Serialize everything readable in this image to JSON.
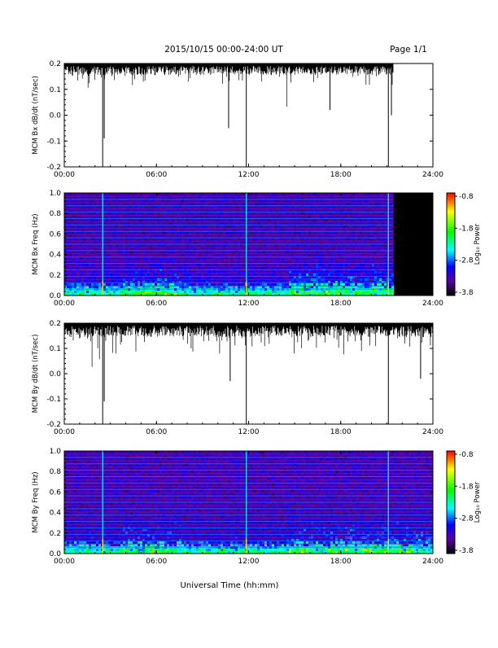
{
  "header": {
    "date_title": "2015/10/15  00:00-24:00 UT",
    "page_label": "Page 1/1"
  },
  "xaxis": {
    "label": "Universal Time (hh:mm)",
    "ticks": [
      "00:00",
      "06:00",
      "12:00",
      "18:00",
      "24:00"
    ]
  },
  "colorbar": {
    "label": "Log₁₀ Power",
    "ticks": [
      "-0.8",
      "-1.8",
      "-2.8",
      "-3.8"
    ],
    "colors": [
      "#ff0000",
      "#ffff00",
      "#00ff00",
      "#00ffff",
      "#0000ff",
      "#5500aa",
      "#000000"
    ]
  },
  "chart_data": [
    {
      "type": "line",
      "ylabel": "MCM Bx dB/dt (nT/sec)",
      "xlim": [
        0,
        24
      ],
      "ylim": [
        -0.2,
        0.2
      ],
      "yticks": [
        "0.2",
        "0.1",
        "0.0",
        "-0.1",
        "-0.2"
      ],
      "data_end_hour": 21.4,
      "baseline": 0.19,
      "noise_depth": 0.035,
      "spikes": [
        {
          "x": 2.5,
          "y": -0.2
        },
        {
          "x": 2.6,
          "y": -0.09
        },
        {
          "x": 11.85,
          "y": -0.2
        },
        {
          "x": 10.7,
          "y": -0.05
        },
        {
          "x": 17.3,
          "y": 0.02
        },
        {
          "x": 21.1,
          "y": -0.2
        },
        {
          "x": 21.3,
          "y": 0.0
        }
      ]
    },
    {
      "type": "heatmap",
      "ylabel": "MCM Bx Freq (Hz)",
      "xlim": [
        0,
        24
      ],
      "ylim": [
        0,
        1.0
      ],
      "yticks": [
        "1.0",
        "0.8",
        "0.6",
        "0.4",
        "0.2",
        "0.0"
      ],
      "data_end_hour": 21.4,
      "harmonic_spacing_hz": 0.0625,
      "event_lines_hours": [
        2.5,
        11.85,
        21.1
      ],
      "color_range": [
        -3.8,
        -0.8
      ]
    },
    {
      "type": "line",
      "ylabel": "MCM By dB/dt (nT/sec)",
      "xlim": [
        0,
        24
      ],
      "ylim": [
        -0.2,
        0.2
      ],
      "yticks": [
        "0.2",
        "0.1",
        "0.0",
        "-0.1",
        "-0.2"
      ],
      "data_end_hour": 24,
      "baseline": 0.19,
      "noise_depth": 0.045,
      "spikes": [
        {
          "x": 2.5,
          "y": -0.2
        },
        {
          "x": 2.6,
          "y": -0.11
        },
        {
          "x": 10.8,
          "y": -0.03
        },
        {
          "x": 11.85,
          "y": -0.2
        },
        {
          "x": 21.1,
          "y": -0.2
        },
        {
          "x": 23.2,
          "y": -0.02
        }
      ]
    },
    {
      "type": "heatmap",
      "ylabel": "MCM By Freq (Hz)",
      "xlim": [
        0,
        24
      ],
      "ylim": [
        0,
        1.0
      ],
      "yticks": [
        "1.0",
        "0.8",
        "0.6",
        "0.4",
        "0.2",
        "0.0"
      ],
      "data_end_hour": 24,
      "harmonic_spacing_hz": 0.0625,
      "event_lines_hours": [
        2.5,
        11.85,
        21.1
      ],
      "color_range": [
        -3.8,
        -0.8
      ]
    }
  ]
}
